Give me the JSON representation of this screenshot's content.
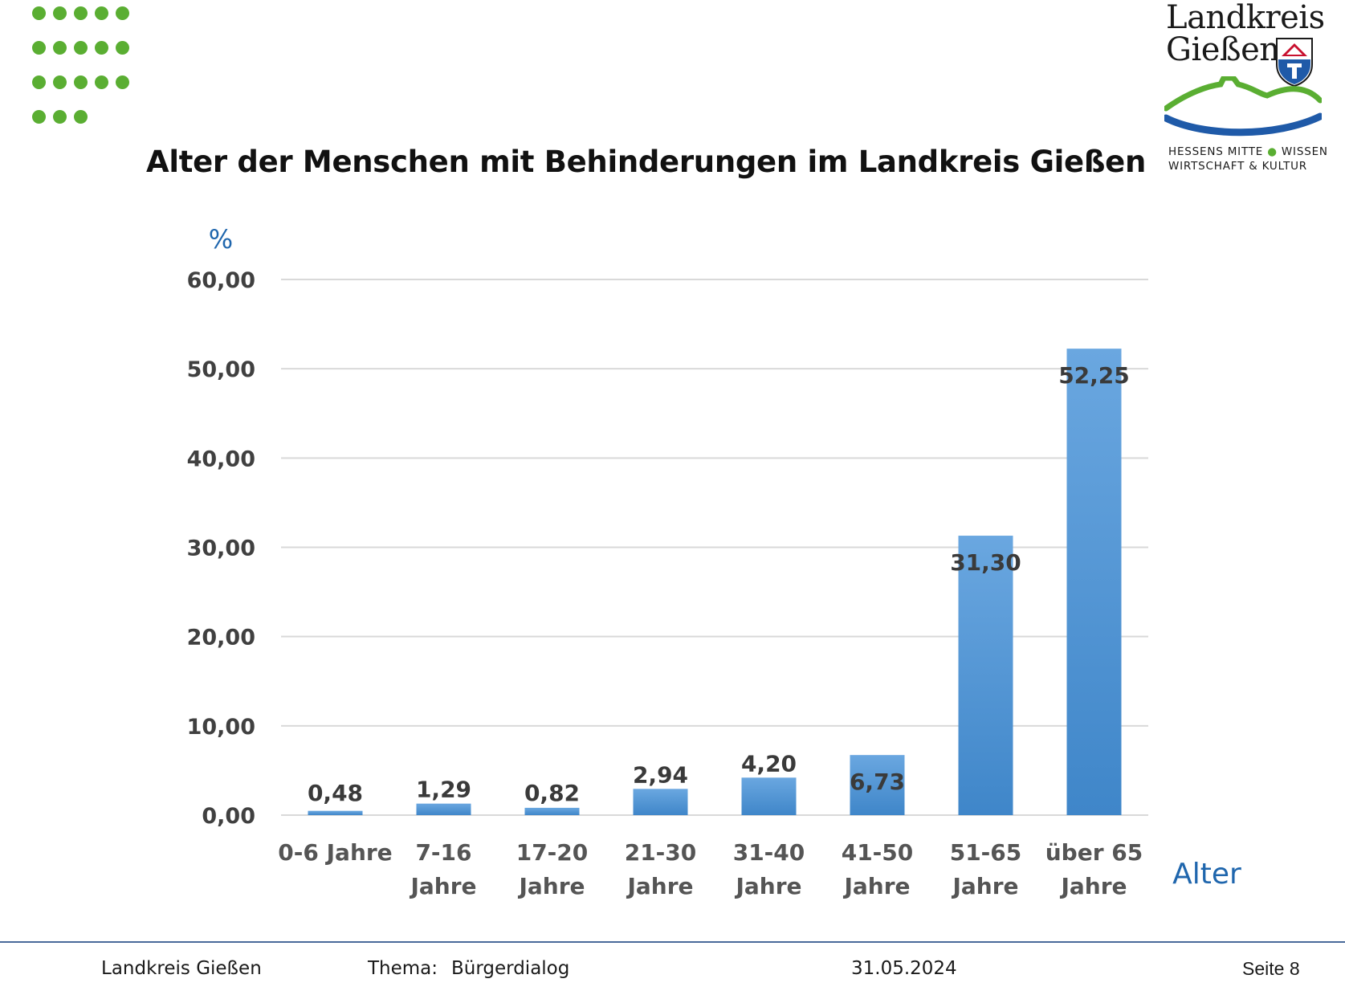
{
  "logo": {
    "line1": "Landkreis",
    "line2": "Gießen",
    "tag_line1a": "HESSENS MITTE",
    "tag_line1b": "WISSEN",
    "tag_line2": "WIRTSCHAFT & KULTUR"
  },
  "colors": {
    "accent_green": "#5aae32",
    "bar_blue_top": "#6aa7e0",
    "bar_blue_bottom": "#3f86c9",
    "axis_blue": "#1f66ad",
    "logo_blue": "#1f5aa8"
  },
  "chart_data": {
    "type": "bar",
    "title": "Alter der Menschen mit Behinderungen im Landkreis Gießen",
    "ylabel": "%",
    "xlabel": "Alter",
    "ylim": [
      0,
      60
    ],
    "yticks": [
      "0,00",
      "10,00",
      "20,00",
      "30,00",
      "40,00",
      "50,00",
      "60,00"
    ],
    "grid": true,
    "categories": [
      [
        "0-6 Jahre"
      ],
      [
        "7-16",
        "Jahre"
      ],
      [
        "17-20",
        "Jahre"
      ],
      [
        "21-30",
        "Jahre"
      ],
      [
        "31-40",
        "Jahre"
      ],
      [
        "41-50",
        "Jahre"
      ],
      [
        "51-65",
        "Jahre"
      ],
      [
        "über 65",
        "Jahre"
      ]
    ],
    "values": [
      0.48,
      1.29,
      0.82,
      2.94,
      4.2,
      6.73,
      31.3,
      52.25
    ],
    "value_labels": [
      "0,48",
      "1,29",
      "0,82",
      "2,94",
      "4,20",
      "6,73",
      "31,30",
      "52,25"
    ]
  },
  "footer": {
    "org": "Landkreis Gießen",
    "topic_label": "Thema:",
    "topic": "Bürgerdialog",
    "date": "31.05.2024",
    "page": "Seite 8"
  }
}
